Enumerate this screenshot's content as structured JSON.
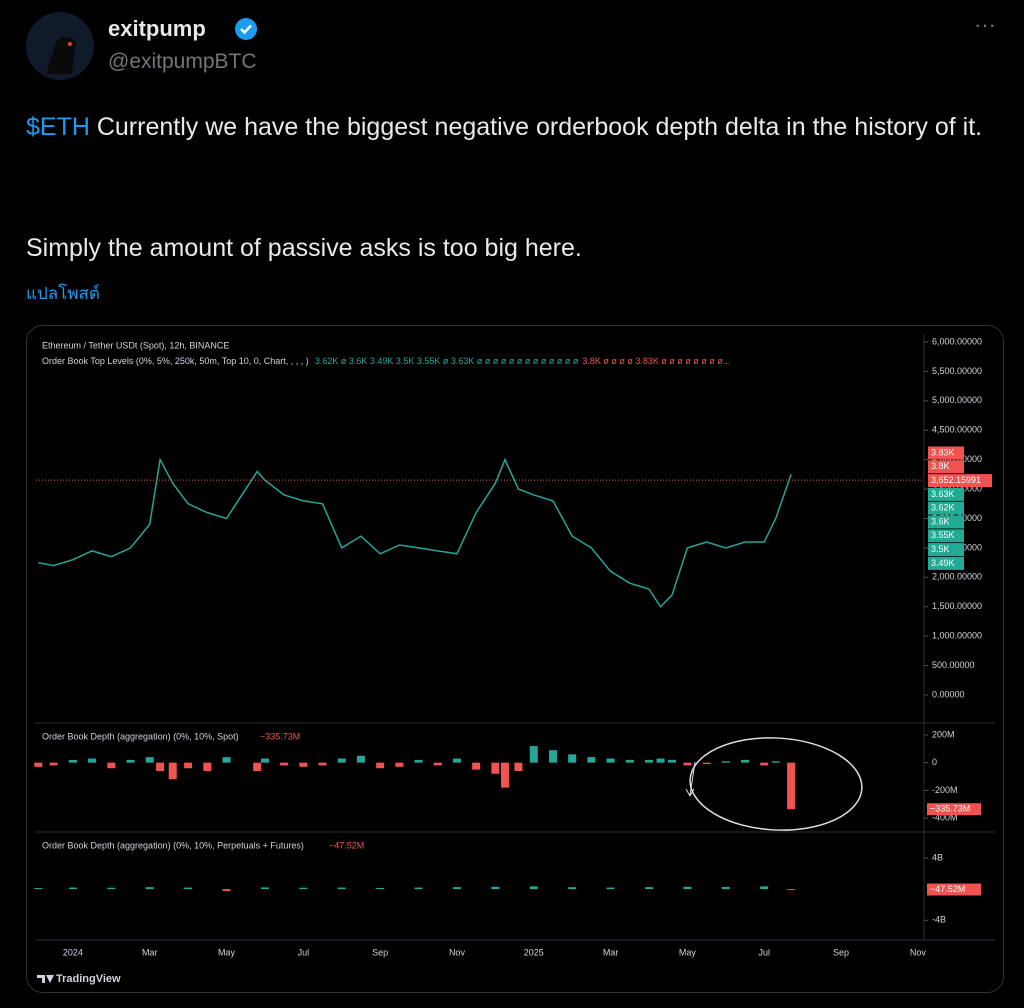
{
  "tweet": {
    "name": "exitpump",
    "handle": "@exitpumpBTC",
    "more": "···",
    "cashtag": "$ETH",
    "text1": " Currently we have the biggest negative orderbook depth delta in the history of it.",
    "text2": "Simply the amount of passive asks is too big here.",
    "translate": "แปลโพสต์"
  },
  "chart_header": {
    "symbol": "Ethereum / Tether USDt (Spot), 12h, BINANCE",
    "indicator": "Order Book Top Levels (0%, 5%, 250k, 50m, Top 10, 0, Chart, , , , )",
    "levels_green": "3.62K ø 3.6K 3.49K 3.5K 3.55K ø 3.63K ø ø ø ø ø ø ø ø ø ø ø ø ø",
    "levels_red": "3.8K ø ø ø ø 3.83K ø ø ø ø ø ø ø ø...",
    "watermark": "TradingView"
  },
  "price_badges": [
    {
      "label": "3.83K",
      "color": "#f05350"
    },
    {
      "label": "3.8K",
      "color": "#f05350"
    },
    {
      "label": "3,652.15991",
      "color": "#f05350"
    },
    {
      "label": "3.63K",
      "color": "#22ab94"
    },
    {
      "label": "3.62K",
      "color": "#22ab94"
    },
    {
      "label": "3.6K",
      "color": "#22ab94"
    },
    {
      "label": "3.55K",
      "color": "#22ab94"
    },
    {
      "label": "3.5K",
      "color": "#22ab94"
    },
    {
      "label": "3.49K",
      "color": "#22ab94"
    }
  ],
  "chart_data": [
    {
      "type": "line",
      "title": "Ethereum / Tether USDt (Spot), 12h, BINANCE",
      "color": "#26a69a",
      "last_line": 3652.15991,
      "x": [
        -0.9,
        -0.5,
        0,
        0.5,
        1,
        1.5,
        2,
        2.27,
        2.6,
        3,
        3.5,
        4,
        4.8,
        5,
        5.5,
        6,
        6.5,
        7,
        7.5,
        8,
        8.5,
        9,
        9.5,
        10,
        10.5,
        11,
        11.25,
        11.6,
        12,
        12.5,
        13,
        13.5,
        14,
        14.5,
        15,
        15.3,
        15.6,
        16,
        16.5,
        17,
        17.5,
        18,
        18.3,
        18.7
      ],
      "values": [
        2250,
        2200,
        2300,
        2450,
        2350,
        2500,
        2900,
        4000,
        3600,
        3250,
        3100,
        3000,
        3800,
        3650,
        3400,
        3300,
        3250,
        2500,
        2700,
        2400,
        2550,
        2500,
        2450,
        2400,
        3100,
        3600,
        4000,
        3500,
        3400,
        3300,
        2700,
        2500,
        2100,
        1900,
        1800,
        1500,
        1700,
        2500,
        2600,
        2500,
        2600,
        2600,
        3000,
        3750
      ],
      "xlim": [
        -0.96,
        22.16
      ],
      "xticks": [
        {
          "value": 0,
          "label": "2024"
        },
        {
          "value": 2,
          "label": "Mar"
        },
        {
          "value": 4,
          "label": "May"
        },
        {
          "value": 6,
          "label": "Jul"
        },
        {
          "value": 8,
          "label": "Sep"
        },
        {
          "value": 10,
          "label": "Nov"
        },
        {
          "value": 12,
          "label": "2025"
        },
        {
          "value": 14,
          "label": "Mar"
        },
        {
          "value": 16,
          "label": "May"
        },
        {
          "value": 18,
          "label": "Jul"
        },
        {
          "value": 20,
          "label": "Sep"
        },
        {
          "value": 22,
          "label": "Nov"
        }
      ],
      "ylim": [
        -460,
        6120
      ],
      "yticks": [
        {
          "value": 6000,
          "label": "6,000.00000"
        },
        {
          "value": 5500,
          "label": "5,500.00000"
        },
        {
          "value": 5000,
          "label": "5,000.00000"
        },
        {
          "value": 4500,
          "label": "4,500.00000"
        },
        {
          "value": 4000,
          "label": "4,000.00000"
        },
        {
          "value": 3500,
          "label": "3,500.00000"
        },
        {
          "value": 3000,
          "label": "3,000.00000"
        },
        {
          "value": 2500,
          "label": "2,500.00000"
        },
        {
          "value": 2000,
          "label": "2,000.00000"
        },
        {
          "value": 1500,
          "label": "1,500.00000"
        },
        {
          "value": 1000,
          "label": "1,000.00000"
        },
        {
          "value": 500,
          "label": "500.00000"
        },
        {
          "value": 0,
          "label": "0.00000"
        }
      ]
    },
    {
      "type": "bar",
      "title": "Order Book Depth (aggregation) (0%, 10%, Spot)",
      "last_label": "−335.73M",
      "pos_color": "#26a69a",
      "neg_color": "#f05350",
      "x": [
        -0.9,
        -0.5,
        0,
        0.5,
        1,
        1.5,
        2,
        2.27,
        2.6,
        3,
        3.5,
        4,
        4.8,
        5,
        5.5,
        6,
        6.5,
        7,
        7.5,
        8,
        8.5,
        9,
        9.5,
        10,
        10.5,
        11,
        11.25,
        11.6,
        12,
        12.5,
        13,
        13.5,
        14,
        14.5,
        15,
        15.3,
        15.6,
        16,
        16.5,
        17,
        17.5,
        18,
        18.3,
        18.7
      ],
      "values": [
        -30,
        -20,
        20,
        30,
        -40,
        20,
        40,
        -60,
        -120,
        -40,
        -60,
        40,
        -60,
        30,
        -20,
        -30,
        -20,
        30,
        50,
        -40,
        -30,
        20,
        -20,
        30,
        -50,
        -80,
        -180,
        -60,
        120,
        90,
        60,
        40,
        30,
        20,
        20,
        30,
        20,
        -20,
        -10,
        10,
        20,
        -20,
        10,
        -335.73
      ],
      "xlim": [
        -0.96,
        22.16
      ],
      "ylim": [
        -493,
        279
      ],
      "yticks": [
        {
          "value": 200,
          "label": "200M"
        },
        0,
        {
          "value": -200,
          "label": "-200M"
        },
        {
          "value": -400,
          "label": "-400M"
        }
      ]
    },
    {
      "type": "bar",
      "title": "Order Book Depth (aggregation) (0%, 10%, Perpetuals + Futures)",
      "last_label": "−47.52M",
      "pos_color": "#26a69a",
      "neg_color": "#f05350",
      "x": [
        -0.9,
        0,
        1,
        2,
        3,
        4,
        5,
        6,
        7,
        8,
        9,
        10,
        11,
        12,
        13,
        14,
        15,
        16,
        17,
        18,
        18.7
      ],
      "values": [
        150,
        200,
        180,
        250,
        200,
        -250,
        220,
        180,
        200,
        150,
        200,
        250,
        300,
        350,
        250,
        200,
        250,
        300,
        280,
        350,
        -47.52
      ],
      "xlim": [
        -0.96,
        22.16
      ],
      "ylim": [
        -6400,
        7200
      ],
      "yticks": [
        {
          "value": 4000,
          "label": "4B"
        },
        {
          "value": -4000,
          "label": "-4B"
        }
      ]
    }
  ]
}
